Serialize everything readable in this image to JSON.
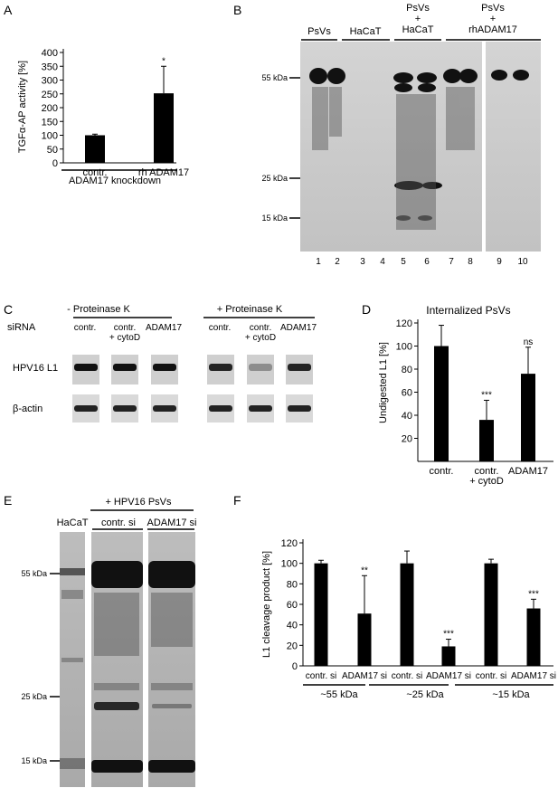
{
  "panel_letters": {
    "a": "A",
    "b": "B",
    "c": "C",
    "d": "D",
    "e": "E",
    "f": "F"
  },
  "chart_data": [
    {
      "panel": "A",
      "type": "bar",
      "ylabel": "TGFα-AP activity [%]",
      "ylim": [
        0,
        400
      ],
      "yticks": [
        "0",
        "50",
        "100",
        "150",
        "200",
        "250",
        "300",
        "350",
        "400"
      ],
      "categories": [
        "contr.",
        "rh ADAM17"
      ],
      "values": [
        100,
        252
      ],
      "errors": [
        4,
        98
      ],
      "significance": [
        "",
        "*"
      ],
      "group_label": "ADAM17 knockdown"
    },
    {
      "panel": "D",
      "type": "bar",
      "title": "Internalized PsVs",
      "ylabel": "Undigested L1 [%]",
      "ylim": [
        0,
        120
      ],
      "yticks": [
        "20",
        "40",
        "60",
        "80",
        "100",
        "120"
      ],
      "categories": [
        "contr.",
        "contr.\n+ cytoD",
        "ADAM17"
      ],
      "values": [
        100,
        36,
        76
      ],
      "errors": [
        18,
        17,
        23
      ],
      "significance": [
        "",
        "***",
        "ns"
      ]
    },
    {
      "panel": "F",
      "type": "bar",
      "ylabel": "L1 cleavage product [%]",
      "ylim": [
        0,
        120
      ],
      "yticks": [
        "0",
        "20",
        "40",
        "60",
        "80",
        "100",
        "120"
      ],
      "categories": [
        "contr. si",
        "ADAM17 si",
        "contr. si",
        "ADAM17 si",
        "contr. si",
        "ADAM17 si"
      ],
      "values": [
        100,
        51,
        100,
        19,
        100,
        56
      ],
      "errors": [
        3,
        37,
        12,
        7,
        4,
        9
      ],
      "significance": [
        "",
        "**",
        "",
        "***",
        "",
        "***"
      ],
      "group_labels": [
        "~55 kDa",
        "~25 kDa",
        "~15 kDa"
      ]
    }
  ],
  "blot_b": {
    "headers": [
      "PsVs",
      "HaCaT",
      "PsVs\n+\nHaCaT",
      "PsVs\n+\nrhADAM17"
    ],
    "markers": [
      "55 kDa",
      "25 kDa",
      "15 kDa"
    ],
    "lanes": [
      "1",
      "2",
      "3",
      "4",
      "5",
      "6",
      "7",
      "8",
      "9",
      "10"
    ]
  },
  "blot_c": {
    "siRNA_label": "siRNA",
    "group_minus": "- Proteinase K",
    "group_plus": "+ Proteinase K",
    "lanes": [
      "contr.",
      "contr.\n+ cytoD",
      "ADAM17",
      "contr.",
      "contr.\n+ cytoD",
      "ADAM17"
    ],
    "rows": [
      "HPV16 L1",
      "β-actin"
    ]
  },
  "blot_e": {
    "group_label": "+ HPV16 PsVs",
    "lanes": [
      "HaCaT",
      "contr. si",
      "ADAM17 si"
    ],
    "markers": [
      "55 kDa",
      "25 kDa",
      "15 kDa"
    ]
  }
}
